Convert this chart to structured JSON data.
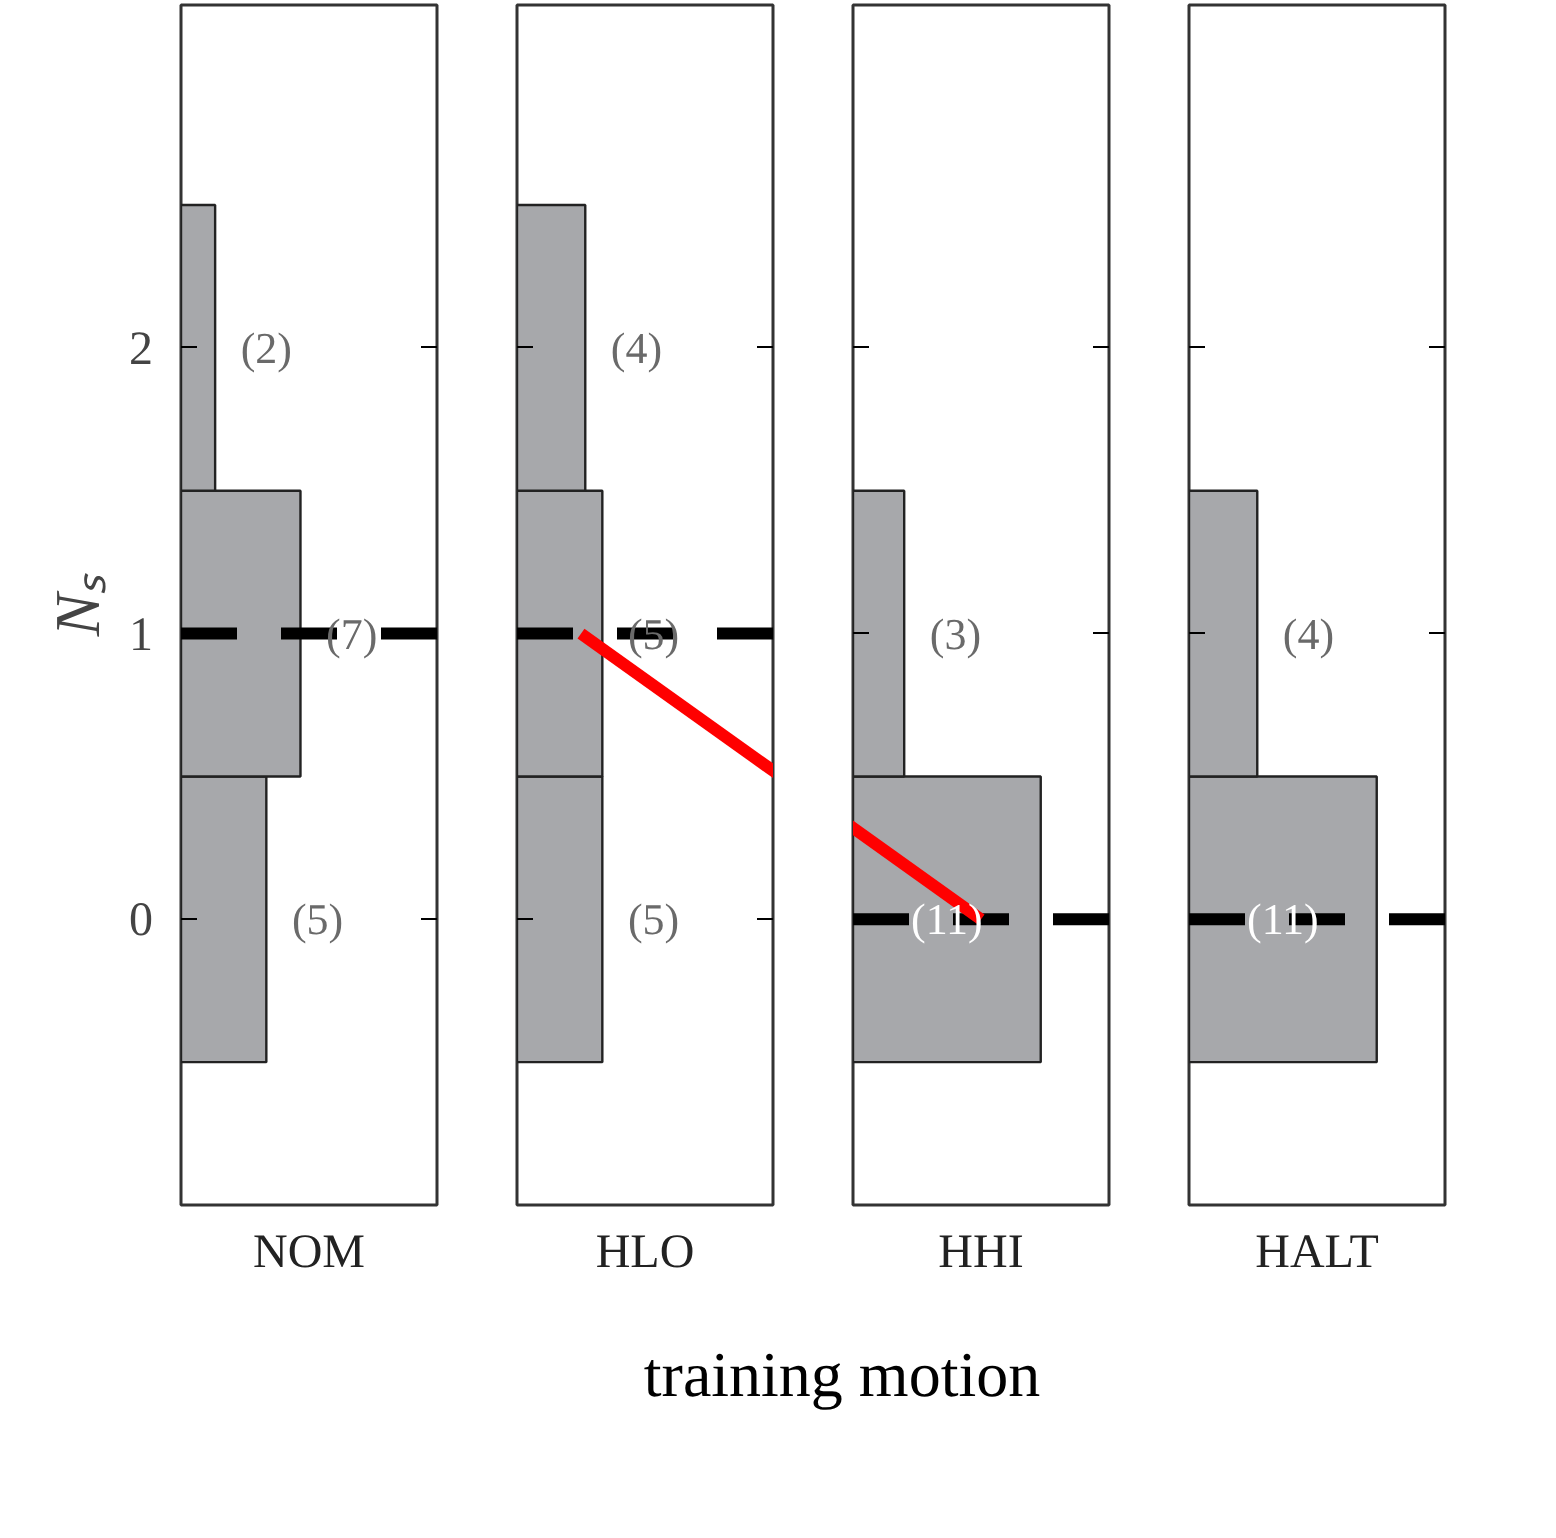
{
  "chart_data": [
    {
      "type": "bar",
      "orientation": "horizontal",
      "title": "NOM",
      "x": [
        0,
        1,
        2
      ],
      "values": [
        5,
        7,
        2
      ],
      "value_labels": [
        "(5)",
        "(7)",
        "(2)"
      ],
      "color": "#a7a8ab",
      "xlim": [
        0,
        15
      ],
      "ylim": [
        -1,
        3.2
      ],
      "yticks": [
        0,
        1,
        2
      ],
      "ylabel": "Nₛ",
      "xlabel": "training motion",
      "grid": false,
      "ref_lines": [
        {
          "axis": "y",
          "value": 1,
          "color": "#000000",
          "line_style": "dashed"
        }
      ]
    },
    {
      "type": "bar",
      "orientation": "horizontal",
      "title": "HLO",
      "x": [
        0,
        1,
        2
      ],
      "values": [
        5,
        5,
        4
      ],
      "value_labels": [
        "(5)",
        "(5)",
        "(4)"
      ],
      "color": "#a7a8ab",
      "xlim": [
        0,
        15
      ],
      "ylim": [
        -1,
        3.2
      ],
      "yticks": [
        0,
        1,
        2
      ],
      "tick_labels": false,
      "grid": false,
      "ref_lines": [
        {
          "axis": "y",
          "value": 1,
          "color": "#000000",
          "line_style": "dashed"
        }
      ]
    },
    {
      "type": "bar",
      "orientation": "horizontal",
      "title": "HHI",
      "x": [
        0,
        1,
        2
      ],
      "values": [
        11,
        3,
        0
      ],
      "value_labels": [
        "(11)",
        "(3)",
        null
      ],
      "color": "#a7a8ab",
      "xlim": [
        0,
        15
      ],
      "ylim": [
        -1,
        3.2
      ],
      "yticks": [
        0,
        1,
        2
      ],
      "tick_labels": false,
      "grid": false,
      "ref_lines": [
        {
          "axis": "y",
          "value": 0,
          "color": "#000000",
          "line_style": "dashed"
        }
      ]
    },
    {
      "type": "bar",
      "orientation": "horizontal",
      "title": "HALT",
      "x": [
        0,
        1,
        2
      ],
      "values": [
        11,
        4,
        0
      ],
      "value_labels": [
        "(11)",
        "(4)",
        null
      ],
      "color": "#a7a8ab",
      "xlim": [
        0,
        15
      ],
      "ylim": [
        -1,
        3.2
      ],
      "yticks": [
        0,
        1,
        2
      ],
      "tick_labels": false,
      "grid": false,
      "ref_lines": [
        {
          "axis": "y",
          "value": 0,
          "color": "#000000",
          "line_style": "dashed"
        }
      ]
    }
  ]
}
